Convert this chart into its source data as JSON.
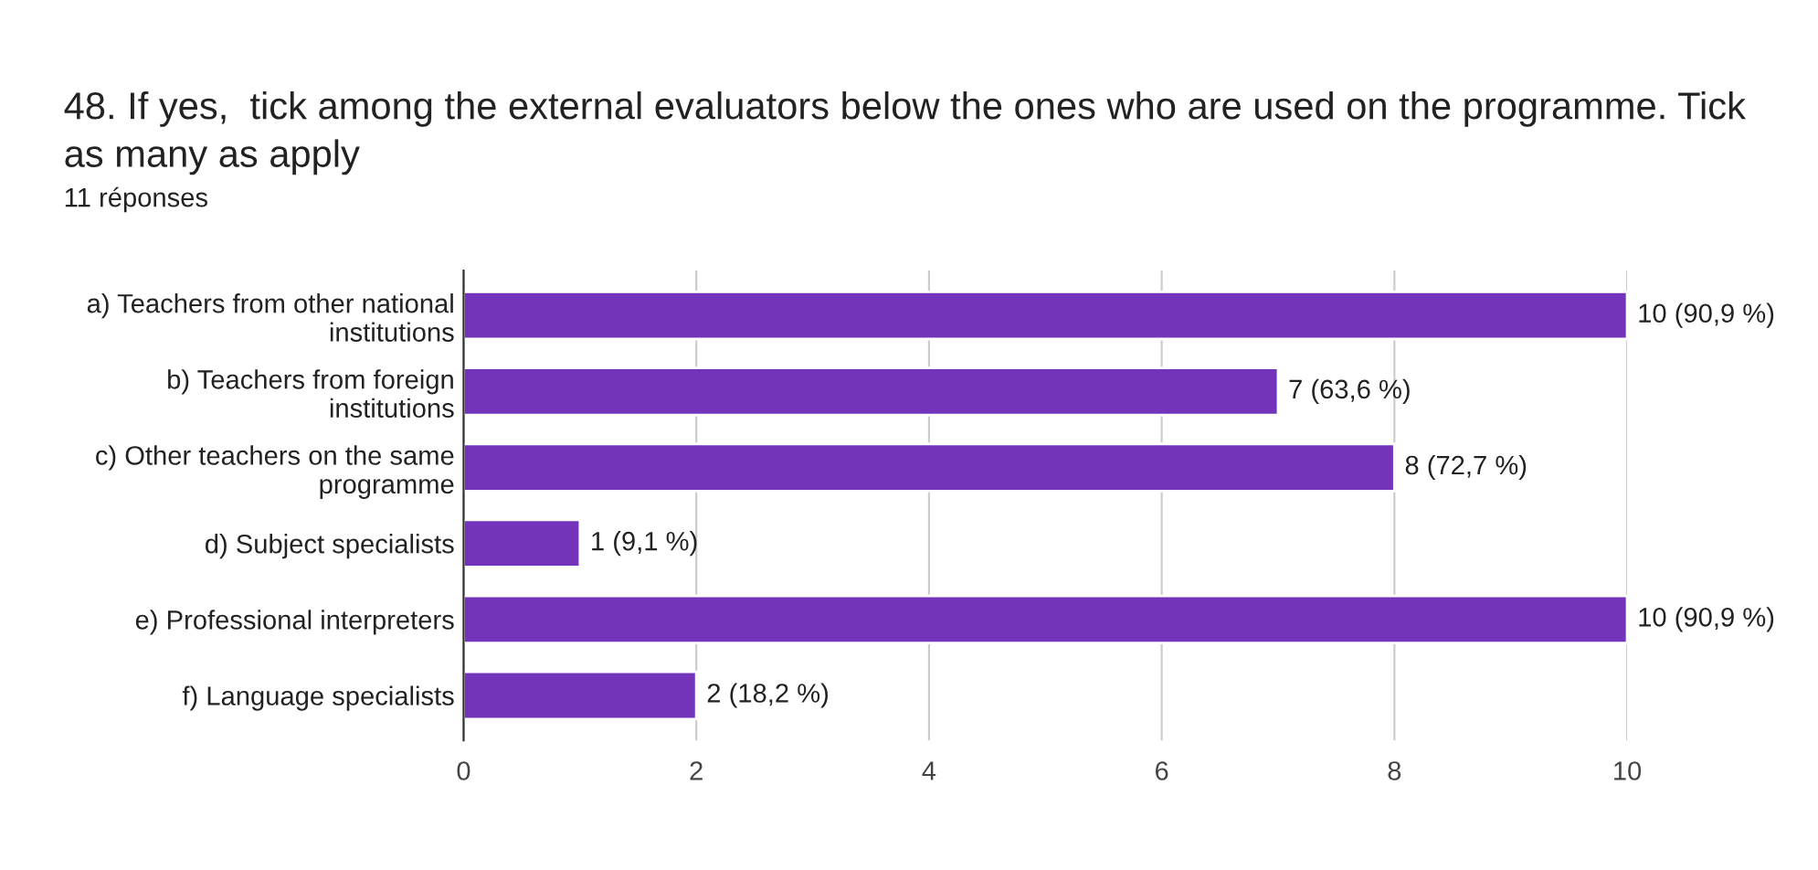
{
  "chart_data": {
    "type": "bar",
    "orientation": "horizontal",
    "title": "48. If yes,  tick among the external evaluators below the ones who are used on the programme. Tick\nas many as apply",
    "subtitle": "11 réponses",
    "categories": [
      "a) Teachers from other national\ninstitutions",
      "b) Teachers from foreign\ninstitutions",
      "c) Other teachers on the same\nprogramme",
      "d) Subject specialists",
      "e) Professional interpreters",
      "f) Language specialists"
    ],
    "values": [
      10,
      7,
      8,
      1,
      10,
      2
    ],
    "value_labels": [
      "10 (90,9 %)",
      "7 (63,6 %)",
      "8 (72,7 %)",
      "1 (9,1 %)",
      "10 (90,9 %)",
      "2 (18,2 %)"
    ],
    "color": "#7334bb",
    "xlim": [
      0,
      10
    ],
    "xticks": [
      0,
      2,
      4,
      6,
      8,
      10
    ],
    "grid": "x",
    "legend": false
  }
}
